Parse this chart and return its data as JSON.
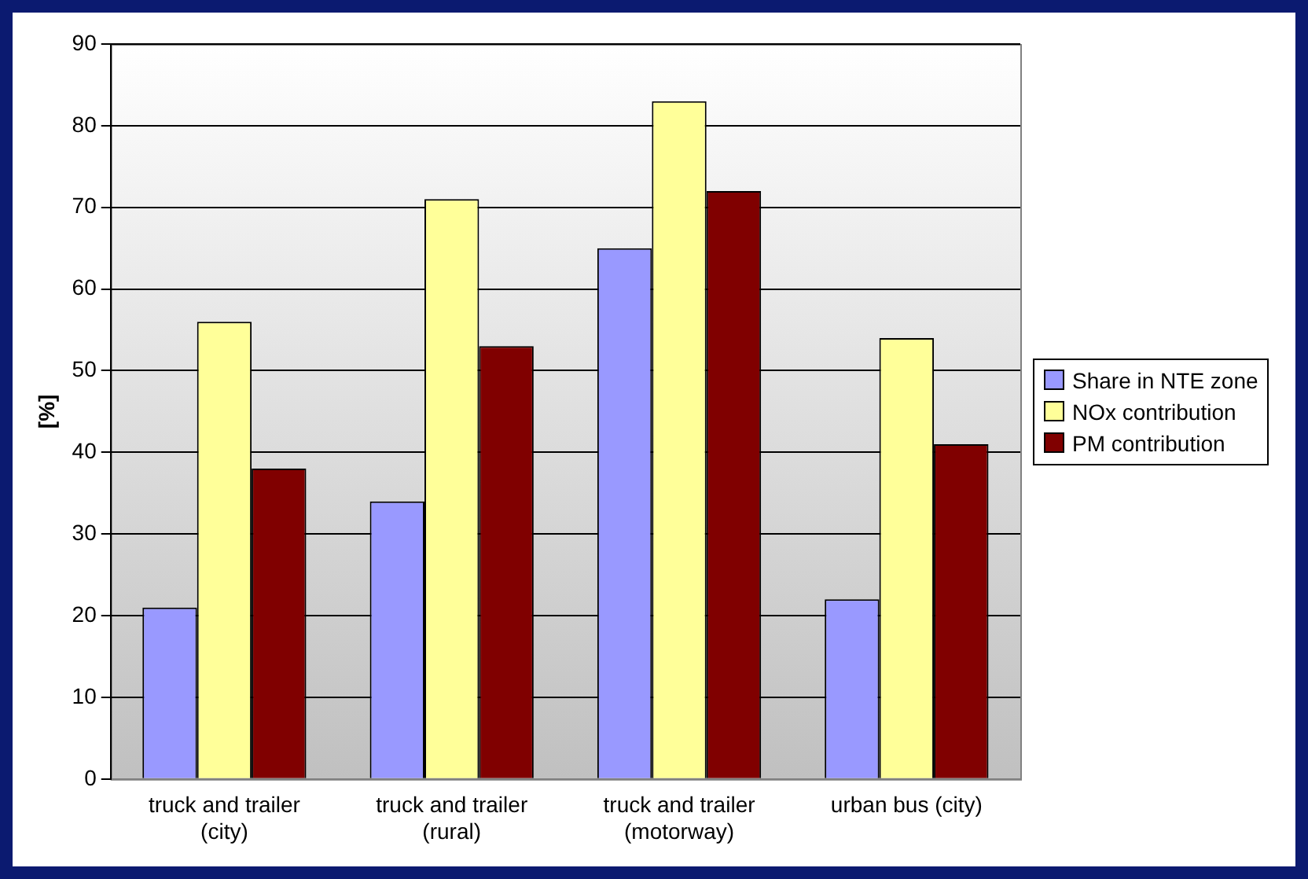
{
  "chart_data": {
    "type": "bar",
    "ylabel": "[%]",
    "categories": [
      "truck and trailer (city)",
      "truck and trailer (rural)",
      "truck and trailer (motorway)",
      "urban bus (city)"
    ],
    "series": [
      {
        "name": "Share in NTE zone",
        "color": "#9999ff",
        "values": [
          21,
          34,
          65,
          22
        ]
      },
      {
        "name": "NOx contribution",
        "color": "#ffff99",
        "values": [
          56,
          71,
          83,
          54
        ]
      },
      {
        "name": "PM contribution",
        "color": "#800000",
        "values": [
          38,
          53,
          72,
          41
        ]
      }
    ],
    "ylim": [
      0,
      90
    ],
    "yticks": [
      0,
      10,
      20,
      30,
      40,
      50,
      60,
      70,
      80,
      90
    ],
    "grid": "y",
    "legend": "right"
  }
}
